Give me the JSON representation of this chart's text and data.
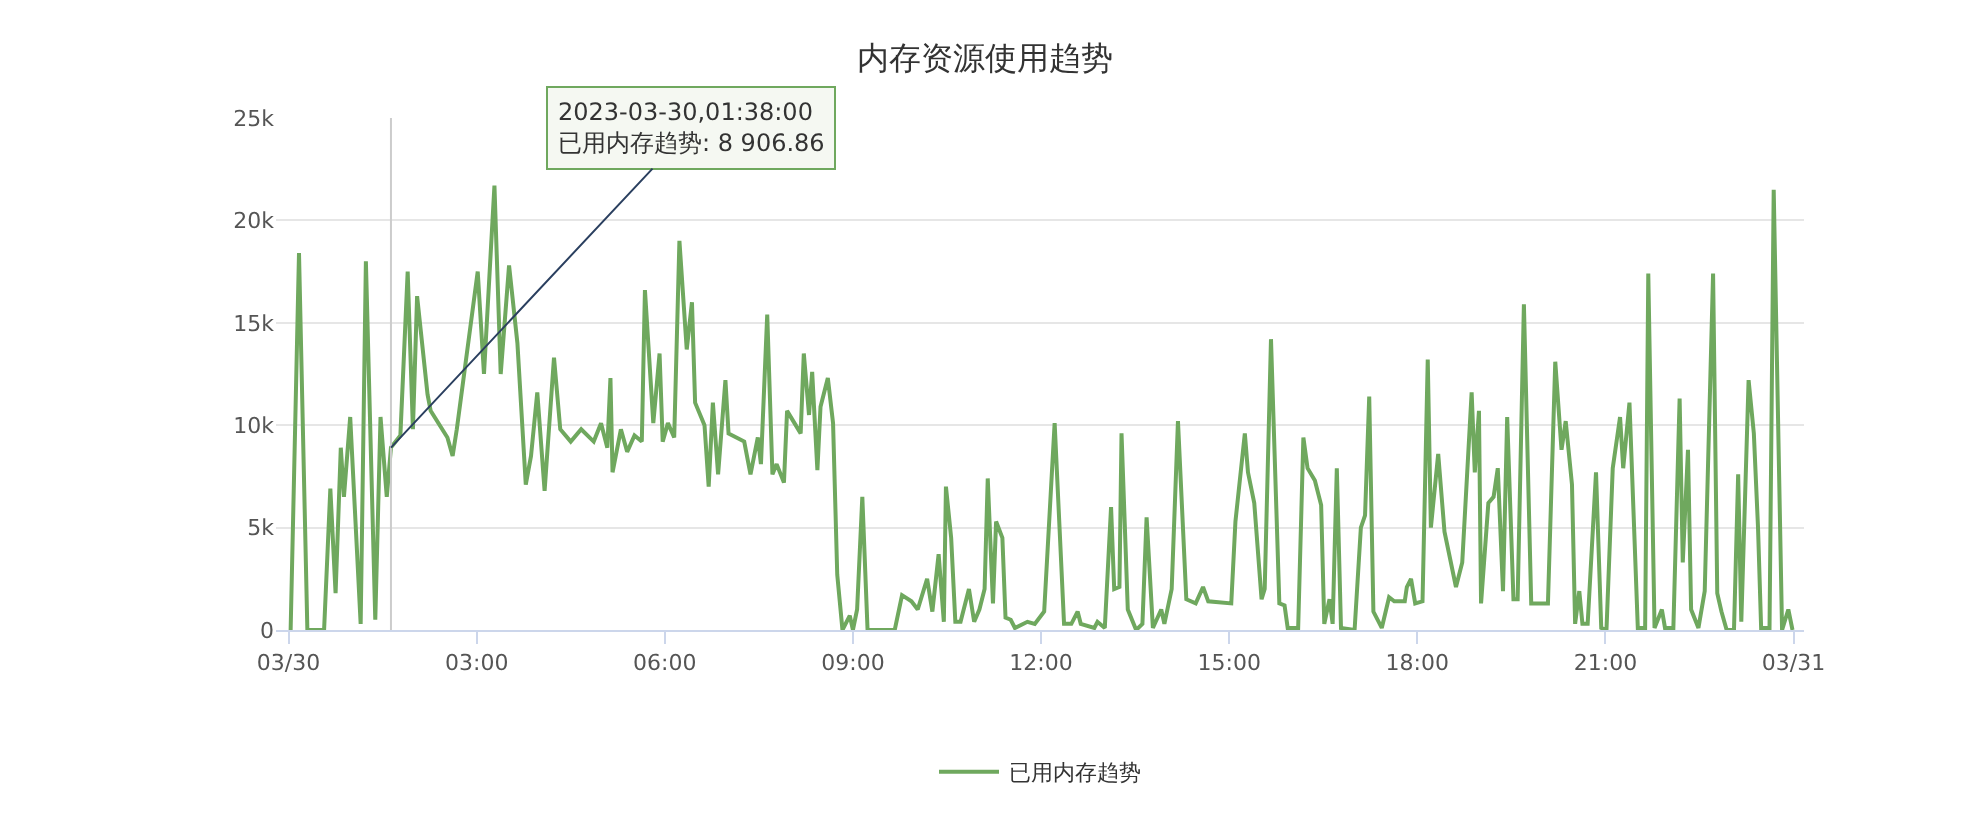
{
  "chart_data": {
    "type": "line",
    "title": "内存资源使用趋势",
    "x": [
      "2023-03-30T00:02",
      "2023-03-30T00:10",
      "2023-03-30T00:18",
      "2023-03-30T00:34",
      "2023-03-30T00:40",
      "2023-03-30T00:45",
      "2023-03-30T00:50",
      "2023-03-30T00:53",
      "2023-03-30T00:59",
      "2023-03-30T01:09",
      "2023-03-30T01:14",
      "2023-03-30T01:23",
      "2023-03-30T01:28",
      "2023-03-30T01:34",
      "2023-03-30T01:38",
      "2023-03-30T01:47",
      "2023-03-30T01:54",
      "2023-03-30T01:59",
      "2023-03-30T02:03",
      "2023-03-30T02:13",
      "2023-03-30T02:16",
      "2023-03-30T02:32",
      "2023-03-30T02:37",
      "2023-03-30T02:41",
      "2023-03-30T03:01",
      "2023-03-30T03:07",
      "2023-03-30T03:17",
      "2023-03-30T03:23",
      "2023-03-30T03:31",
      "2023-03-30T03:39",
      "2023-03-30T03:47",
      "2023-03-30T03:52",
      "2023-03-30T03:58",
      "2023-03-30T04:05",
      "2023-03-30T04:14",
      "2023-03-30T04:20",
      "2023-03-30T04:30",
      "2023-03-30T04:40",
      "2023-03-30T04:52",
      "2023-03-30T04:59",
      "2023-03-30T05:05",
      "2023-03-30T05:08",
      "2023-03-30T05:10",
      "2023-03-30T05:18",
      "2023-03-30T05:24",
      "2023-03-30T05:31",
      "2023-03-30T05:38",
      "2023-03-30T05:41",
      "2023-03-30T05:49",
      "2023-03-30T05:55",
      "2023-03-30T05:58",
      "2023-03-30T06:03",
      "2023-03-30T06:09",
      "2023-03-30T06:14",
      "2023-03-30T06:21",
      "2023-03-30T06:26",
      "2023-03-30T06:29",
      "2023-03-30T06:38",
      "2023-03-30T06:42",
      "2023-03-30T06:46",
      "2023-03-30T06:51",
      "2023-03-30T06:58",
      "2023-03-30T07:01",
      "2023-03-30T07:16",
      "2023-03-30T07:22",
      "2023-03-30T07:29",
      "2023-03-30T07:32",
      "2023-03-30T07:38",
      "2023-03-30T07:43",
      "2023-03-30T07:47",
      "2023-03-30T07:54",
      "2023-03-30T07:57",
      "2023-03-30T08:10",
      "2023-03-30T08:13",
      "2023-03-30T08:18",
      "2023-03-30T08:21",
      "2023-03-30T08:26",
      "2023-03-30T08:29",
      "2023-03-30T08:36",
      "2023-03-30T08:41",
      "2023-03-30T08:45",
      "2023-03-30T08:50",
      "2023-03-30T08:57",
      "2023-03-30T09:00",
      "2023-03-30T09:04",
      "2023-03-30T09:09",
      "2023-03-30T09:14",
      "2023-03-30T09:40",
      "2023-03-30T09:47",
      "2023-03-30T09:56",
      "2023-03-30T10:02",
      "2023-03-30T10:11",
      "2023-03-30T10:16",
      "2023-03-30T10:22",
      "2023-03-30T10:27",
      "2023-03-30T10:29",
      "2023-03-30T10:34",
      "2023-03-30T10:38",
      "2023-03-30T10:43",
      "2023-03-30T10:51",
      "2023-03-30T10:56",
      "2023-03-30T11:01",
      "2023-03-30T11:06",
      "2023-03-30T11:09",
      "2023-03-30T11:14",
      "2023-03-30T11:17",
      "2023-03-30T11:23",
      "2023-03-30T11:26",
      "2023-03-30T11:31",
      "2023-03-30T11:35",
      "2023-03-30T11:47",
      "2023-03-30T11:54",
      "2023-03-30T12:03",
      "2023-03-30T12:13",
      "2023-03-30T12:22",
      "2023-03-30T12:29",
      "2023-03-30T12:35",
      "2023-03-30T12:38",
      "2023-03-30T12:51",
      "2023-03-30T12:54",
      "2023-03-30T13:01",
      "2023-03-30T13:07",
      "2023-03-30T13:10",
      "2023-03-30T13:15",
      "2023-03-30T13:17",
      "2023-03-30T13:23",
      "2023-03-30T13:31",
      "2023-03-30T13:37",
      "2023-03-30T13:41",
      "2023-03-30T13:47",
      "2023-03-30T13:55",
      "2023-03-30T13:58",
      "2023-03-30T14:05",
      "2023-03-30T14:11",
      "2023-03-30T14:19",
      "2023-03-30T14:28",
      "2023-03-30T14:35",
      "2023-03-30T14:40",
      "2023-03-30T15:02",
      "2023-03-30T15:06",
      "2023-03-30T15:15",
      "2023-03-30T15:18",
      "2023-03-30T15:24",
      "2023-03-30T15:31",
      "2023-03-30T15:34",
      "2023-03-30T15:40",
      "2023-03-30T15:48",
      "2023-03-30T15:53",
      "2023-03-30T15:56",
      "2023-03-30T16:06",
      "2023-03-30T16:11",
      "2023-03-30T16:15",
      "2023-03-30T16:22",
      "2023-03-30T16:28",
      "2023-03-30T16:31",
      "2023-03-30T16:36",
      "2023-03-30T16:39",
      "2023-03-30T16:43",
      "2023-03-30T16:47",
      "2023-03-30T17:00",
      "2023-03-30T17:06",
      "2023-03-30T17:10",
      "2023-03-30T17:14",
      "2023-03-30T17:18",
      "2023-03-30T17:26",
      "2023-03-30T17:33",
      "2023-03-30T17:38",
      "2023-03-30T17:48",
      "2023-03-30T17:50",
      "2023-03-30T17:54",
      "2023-03-30T17:58",
      "2023-03-30T18:05",
      "2023-03-30T18:10",
      "2023-03-30T18:13",
      "2023-03-30T18:20",
      "2023-03-30T18:26",
      "2023-03-30T18:37",
      "2023-03-30T18:43",
      "2023-03-30T18:52",
      "2023-03-30T18:55",
      "2023-03-30T18:59",
      "2023-03-30T19:01",
      "2023-03-30T19:08",
      "2023-03-30T19:13",
      "2023-03-30T19:17",
      "2023-03-30T19:22",
      "2023-03-30T19:26",
      "2023-03-30T19:32",
      "2023-03-30T19:36",
      "2023-03-30T19:42",
      "2023-03-30T19:49",
      "2023-03-30T20:05",
      "2023-03-30T20:12",
      "2023-03-30T20:18",
      "2023-03-30T20:22",
      "2023-03-30T20:28",
      "2023-03-30T20:31",
      "2023-03-30T20:35",
      "2023-03-30T20:38",
      "2023-03-30T20:43",
      "2023-03-30T20:51",
      "2023-03-30T20:56",
      "2023-03-30T21:01",
      "2023-03-30T21:07",
      "2023-03-30T21:14",
      "2023-03-30T21:17",
      "2023-03-30T21:23",
      "2023-03-30T21:31",
      "2023-03-30T21:38",
      "2023-03-30T21:41",
      "2023-03-30T21:47",
      "2023-03-30T21:54",
      "2023-03-30T21:57",
      "2023-03-30T22:05",
      "2023-03-30T22:11",
      "2023-03-30T22:14",
      "2023-03-30T22:19",
      "2023-03-30T22:22",
      "2023-03-30T22:29",
      "2023-03-30T22:35",
      "2023-03-30T22:43",
      "2023-03-30T22:47",
      "2023-03-30T22:51",
      "2023-03-30T22:56",
      "2023-03-30T23:03",
      "2023-03-30T23:07",
      "2023-03-30T23:10",
      "2023-03-30T23:17",
      "2023-03-30T23:22",
      "2023-03-30T23:26",
      "2023-03-30T23:29",
      "2023-03-30T23:37",
      "2023-03-30T23:41",
      "2023-03-30T23:49",
      "2023-03-30T23:55",
      "2023-03-30T23:59"
    ],
    "series": [
      {
        "name": "已用内存趋势",
        "color": "#6fa85e",
        "values": [
          0,
          18400,
          0,
          0,
          6900,
          1800,
          8900,
          6500,
          10400,
          300,
          18000,
          500,
          10400,
          6500,
          8906.86,
          9500,
          17500,
          9800,
          16300,
          11500,
          10700,
          9400,
          8500,
          9800,
          17500,
          12500,
          21700,
          12500,
          17800,
          14000,
          7100,
          8500,
          11600,
          6800,
          13300,
          9800,
          9200,
          9800,
          9200,
          10100,
          8900,
          12300,
          7700,
          9800,
          8700,
          9500,
          9200,
          16600,
          10100,
          13500,
          9200,
          10100,
          9400,
          19000,
          13700,
          16000,
          11100,
          10000,
          7000,
          11100,
          7600,
          12200,
          9600,
          9200,
          7600,
          9400,
          8100,
          15400,
          7600,
          8100,
          7200,
          10700,
          9600,
          13500,
          10500,
          12600,
          7800,
          10900,
          12300,
          10100,
          2700,
          0,
          700,
          0,
          1000,
          6500,
          0,
          0,
          1700,
          1400,
          1000,
          2500,
          900,
          3700,
          400,
          7000,
          4500,
          400,
          400,
          2000,
          400,
          1000,
          2000,
          7400,
          1300,
          5300,
          4500,
          600,
          500,
          100,
          400,
          300,
          900,
          10100,
          300,
          300,
          900,
          300,
          100,
          400,
          100,
          6000,
          2000,
          2100,
          9600,
          1000,
          0,
          300,
          5500,
          100,
          1000,
          300,
          2000,
          10200,
          1500,
          1300,
          2100,
          1400,
          1300,
          5300,
          9600,
          7700,
          6200,
          1500,
          2000,
          14200,
          1300,
          1200,
          100,
          100,
          9400,
          7900,
          7300,
          6100,
          300,
          1500,
          300,
          7900,
          100,
          0,
          5000,
          5600,
          11400,
          900,
          100,
          1600,
          1400,
          1400,
          2100,
          2500,
          1300,
          1400,
          13200,
          5000,
          8600,
          4800,
          2100,
          3300,
          11600,
          7700,
          10700,
          1300,
          6200,
          6500,
          7900,
          1900,
          10400,
          1500,
          1500,
          15900,
          1300,
          1300,
          13100,
          8800,
          10200,
          7100,
          300,
          1900,
          300,
          300,
          7700,
          100,
          0,
          7900,
          10400,
          7900,
          11100,
          100,
          100,
          17400,
          100,
          1000,
          100,
          100,
          11300,
          3300,
          8800,
          1000,
          100,
          1900,
          17400,
          1800,
          900,
          0,
          0,
          7600,
          400,
          12200,
          9600,
          5000,
          100,
          100,
          21500,
          0,
          1000,
          0
        ]
      }
    ],
    "xlim": [
      "2023-03-29T23:48",
      "2023-03-31T00:10"
    ],
    "xticks": [
      {
        "value": "2023-03-30T00:00",
        "label": "03/30"
      },
      {
        "value": "2023-03-30T03:00",
        "label": "03:00"
      },
      {
        "value": "2023-03-30T06:00",
        "label": "06:00"
      },
      {
        "value": "2023-03-30T09:00",
        "label": "09:00"
      },
      {
        "value": "2023-03-30T12:00",
        "label": "12:00"
      },
      {
        "value": "2023-03-30T15:00",
        "label": "15:00"
      },
      {
        "value": "2023-03-30T18:00",
        "label": "18:00"
      },
      {
        "value": "2023-03-30T21:00",
        "label": "21:00"
      },
      {
        "value": "2023-03-31T00:00",
        "label": "03/31"
      }
    ],
    "ylim": [
      0,
      25000
    ],
    "yticks": [
      0,
      {
        "value": 5000,
        "label": "5k"
      },
      {
        "value": 10000,
        "label": "10k"
      },
      {
        "value": 15000,
        "label": "15k"
      },
      {
        "value": 20000,
        "label": "20k"
      },
      {
        "value": 25000,
        "label": "25k"
      }
    ],
    "grid": "y",
    "legend": "bottom",
    "marker": "none",
    "line_style": "solid",
    "ref_lines": [
      {
        "axis": "x",
        "value": "2023-03-30T01:38",
        "label": null,
        "color": "#cccccc"
      }
    ],
    "annotations": [
      {
        "text": "2023-03-30,01:38:00\n已用内存趋势: 8 906.86",
        "x": "2023-03-30T01:38",
        "y": 8906.86
      }
    ]
  }
}
